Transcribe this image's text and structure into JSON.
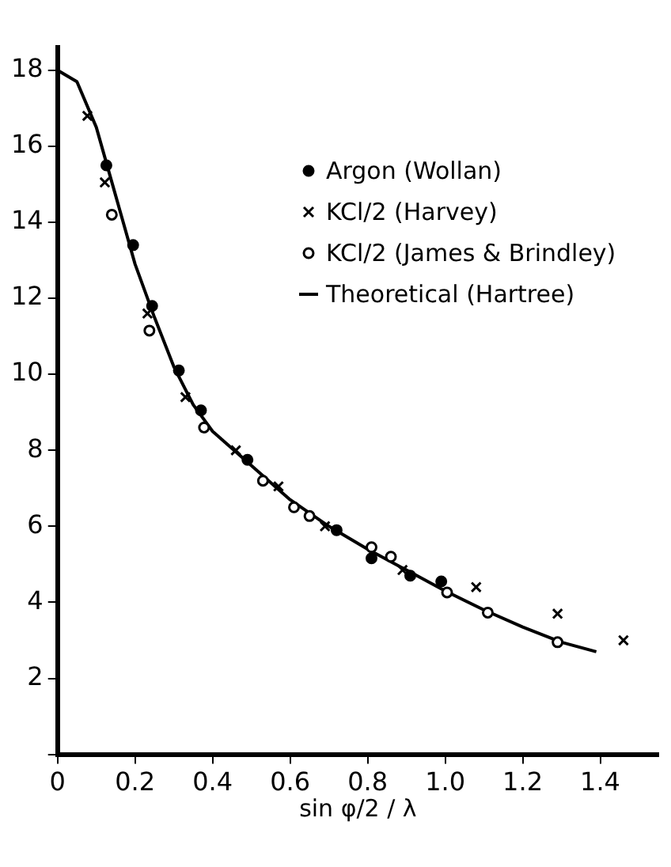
{
  "chart_data": {
    "type": "scatter",
    "xlabel": "sin φ/2 / λ",
    "xlim": [
      0,
      1.55
    ],
    "ylim": [
      0,
      18.6
    ],
    "xticks": [
      0,
      0.2,
      0.4,
      0.6,
      0.8,
      {
        "value": 1,
        "label": "1.0"
      },
      1.2,
      1.4
    ],
    "yticks": [
      {
        "value": 0,
        "label": null
      },
      2,
      4,
      6,
      8,
      10,
      12,
      14,
      16,
      18
    ],
    "grid": false,
    "legend": "right",
    "series": [
      {
        "name": "Argon (Wollan)",
        "color": "#000000",
        "marker": "circle",
        "x": [
          0.126,
          0.195,
          0.244,
          0.313,
          0.37,
          0.49,
          0.72,
          0.81,
          0.91,
          0.99
        ],
        "values": [
          15.5,
          13.4,
          11.8,
          10.1,
          9.05,
          7.75,
          5.9,
          5.16,
          4.7,
          4.55
        ]
      },
      {
        "name": "KCl/2 (Harvey)",
        "color": "#000000",
        "marker": "cross",
        "x": [
          0.077,
          0.122,
          0.232,
          0.33,
          0.46,
          0.57,
          0.69,
          0.89,
          1.08,
          1.29,
          1.46
        ],
        "values": [
          16.8,
          15.05,
          11.6,
          9.4,
          8.0,
          7.05,
          6.0,
          4.85,
          4.4,
          3.7,
          3.0
        ]
      },
      {
        "name": "KCl/2 (James & Brindley)",
        "color": "#ffffff",
        "marker": "circle",
        "x": [
          0.14,
          0.237,
          0.378,
          0.53,
          0.61,
          0.65,
          0.81,
          0.86,
          1.005,
          1.11,
          1.29
        ],
        "values": [
          14.2,
          11.15,
          8.6,
          7.2,
          6.5,
          6.27,
          5.45,
          5.2,
          4.26,
          3.73,
          2.95
        ]
      },
      {
        "name": "Theoretical (Hartree)",
        "color": "#000000",
        "type": "line",
        "marker": "none",
        "line_style": "solid",
        "x": [
          0,
          0.05,
          0.1,
          0.15,
          0.2,
          0.25,
          0.3,
          0.35,
          0.4,
          0.5,
          0.6,
          0.7,
          0.8,
          0.9,
          1.0,
          1.1,
          1.2,
          1.3,
          1.39
        ],
        "values": [
          18,
          17.7,
          16.5,
          14.7,
          12.9,
          11.5,
          10.2,
          9.2,
          8.5,
          7.6,
          6.7,
          6.0,
          5.4,
          4.85,
          4.3,
          3.8,
          3.35,
          2.95,
          2.7
        ]
      }
    ]
  }
}
